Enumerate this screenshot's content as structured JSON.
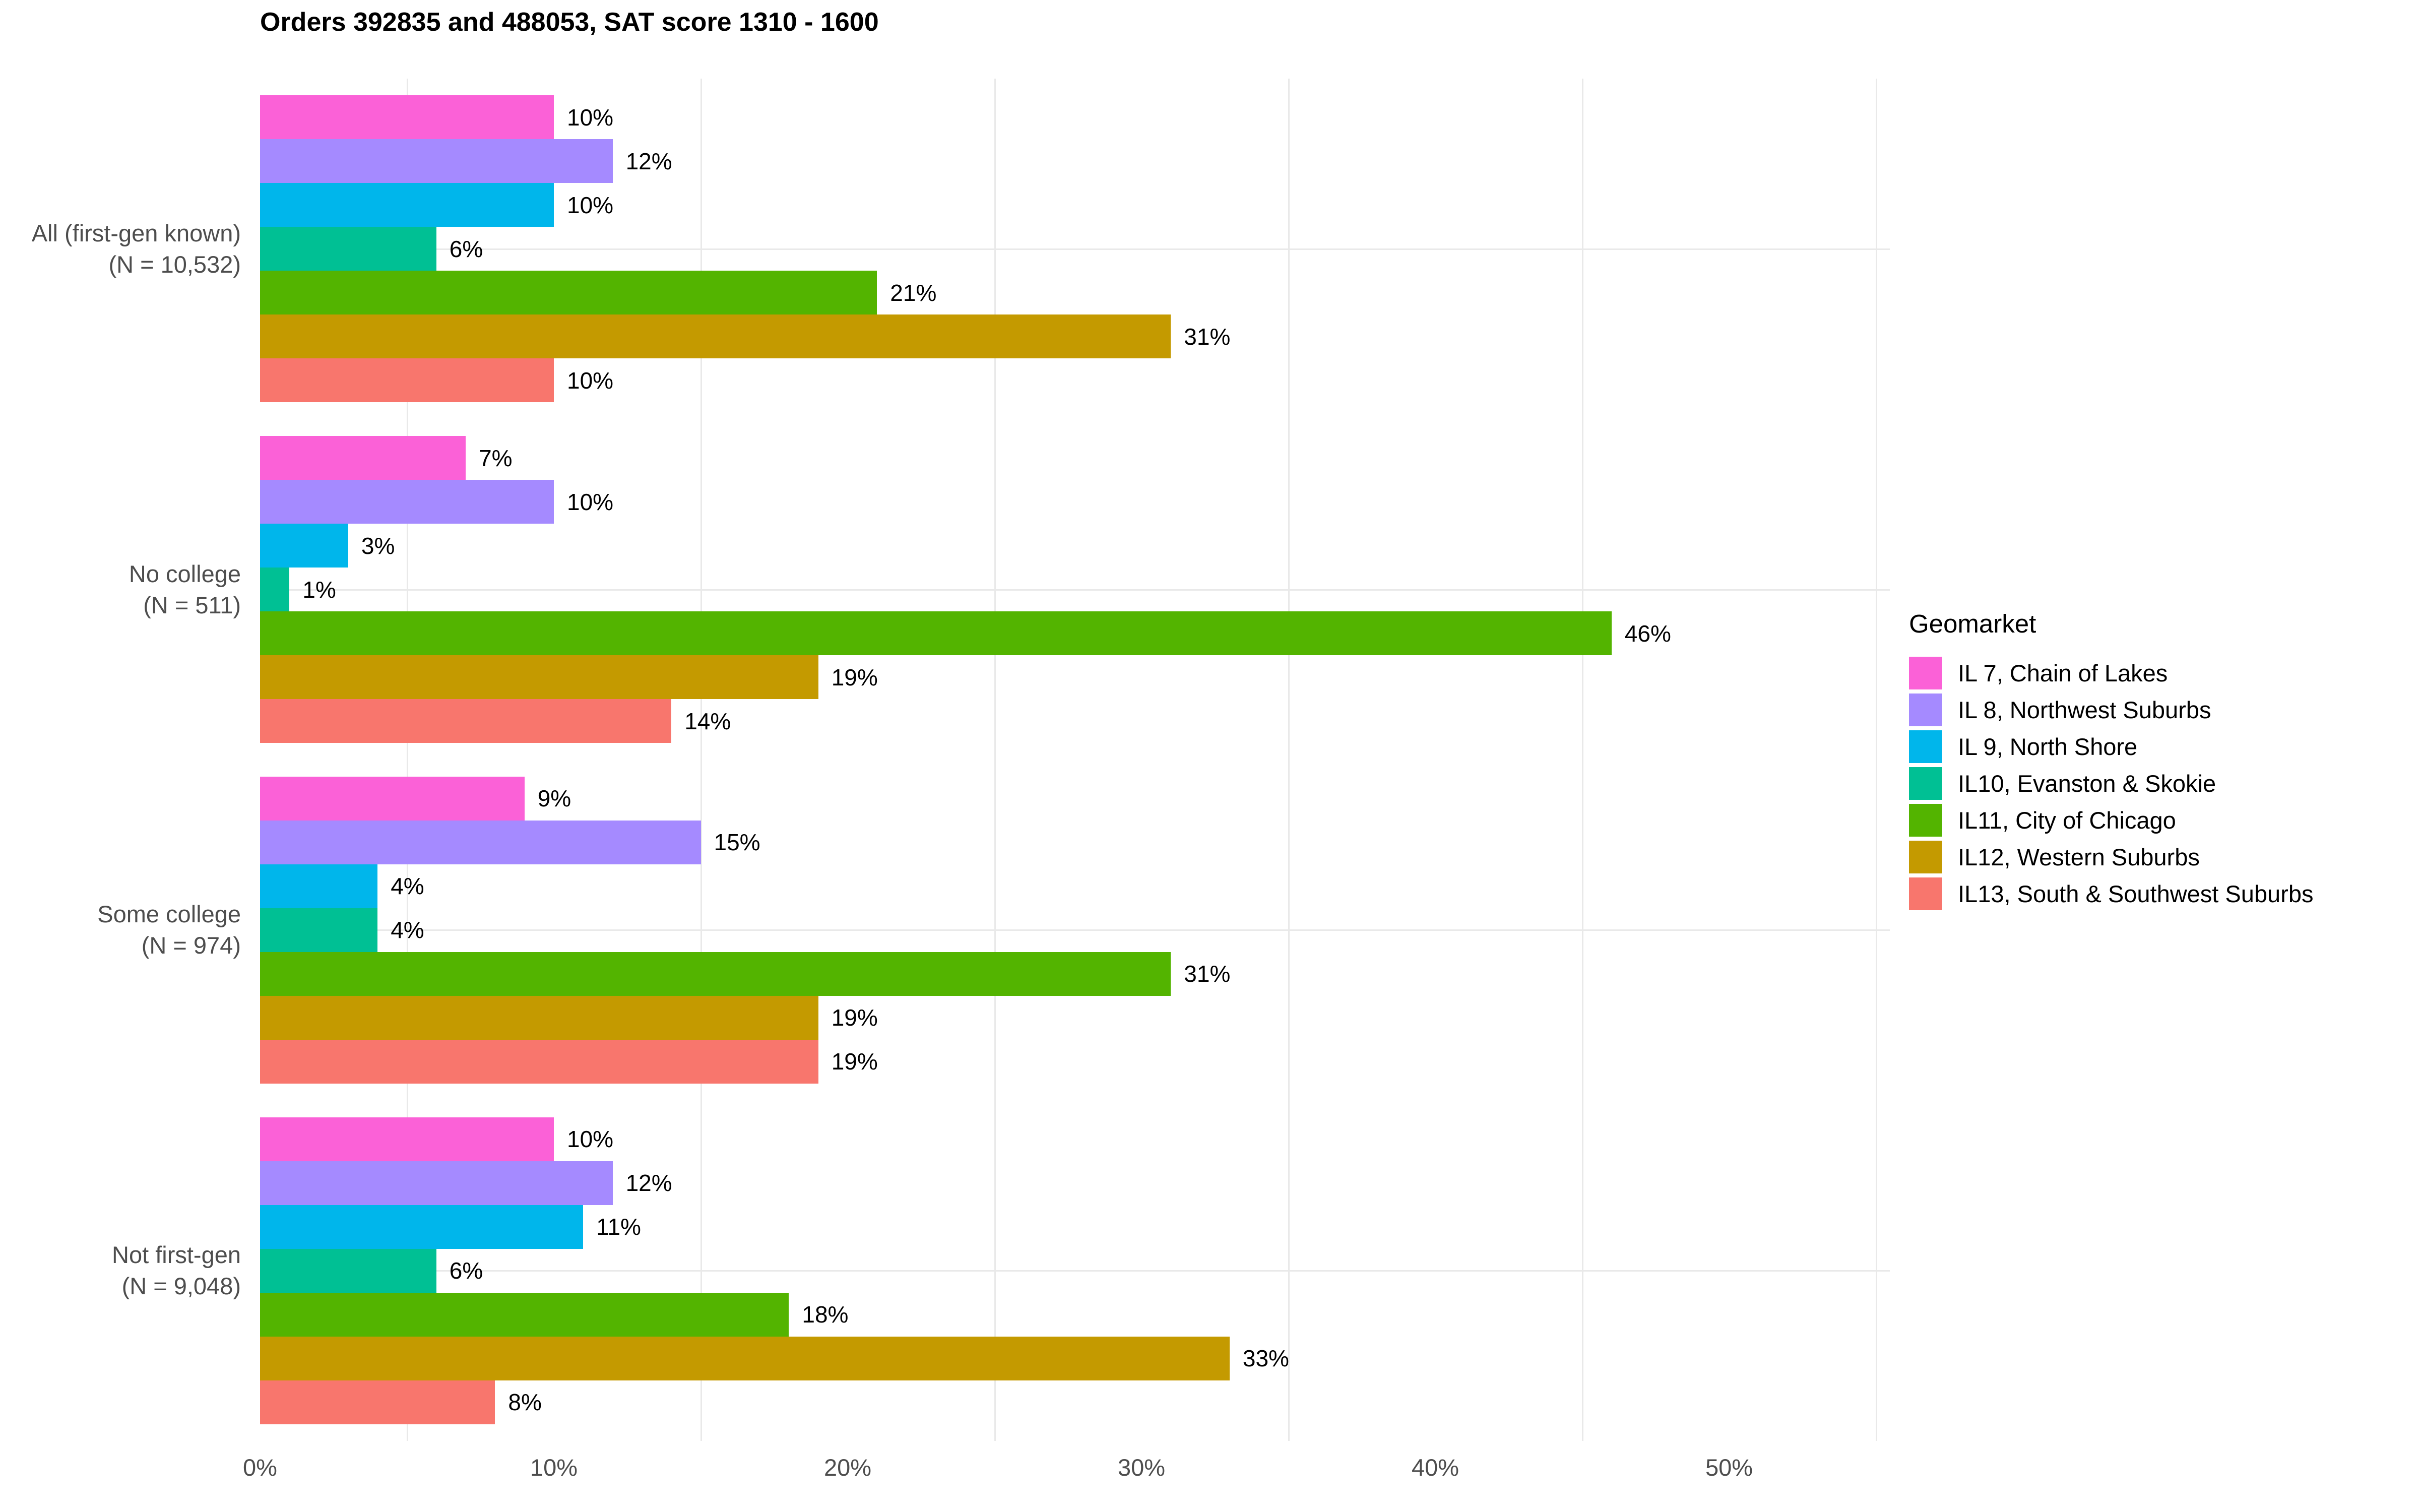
{
  "title": "Orders 392835 and 488053, SAT score 1310 - 1600",
  "chart_data": {
    "type": "bar",
    "orientation": "horizontal",
    "title": "Orders 392835 and 488053, SAT score 1310 - 1600",
    "xlabel": "",
    "ylabel": "",
    "value_suffix": "%",
    "x_axis": {
      "tick_labels": [
        "0%",
        "10%",
        "20%",
        "30%",
        "40%",
        "50%"
      ],
      "tick_values": [
        0,
        10,
        20,
        30,
        40,
        50
      ],
      "minor_gridline_values": [
        5,
        15,
        25,
        35,
        45,
        55
      ],
      "max": 55.5
    },
    "categories": [
      {
        "label_line1": "All (first-gen known)",
        "label_line2": "(N = 10,532)"
      },
      {
        "label_line1": "No college",
        "label_line2": "(N = 511)"
      },
      {
        "label_line1": "Some college",
        "label_line2": "(N = 974)"
      },
      {
        "label_line1": "Not first-gen",
        "label_line2": "(N = 9,048)"
      }
    ],
    "legend": {
      "title": "Geomarket",
      "position": "right"
    },
    "series": [
      {
        "name": "IL 7, Chain of Lakes",
        "color": "#FB61D7",
        "values": [
          10,
          7,
          9,
          10
        ]
      },
      {
        "name": "IL 8, Northwest Suburbs",
        "color": "#A58AFF",
        "values": [
          12,
          10,
          15,
          12
        ]
      },
      {
        "name": "IL 9, North Shore",
        "color": "#00B6EB",
        "values": [
          10,
          3,
          4,
          11
        ]
      },
      {
        "name": "IL10, Evanston & Skokie",
        "color": "#00C094",
        "values": [
          6,
          1,
          4,
          6
        ]
      },
      {
        "name": "IL11, City of Chicago",
        "color": "#53B400",
        "values": [
          21,
          46,
          31,
          18
        ]
      },
      {
        "name": "IL12, Western Suburbs",
        "color": "#C49A00",
        "values": [
          31,
          19,
          19,
          33
        ]
      },
      {
        "name": "IL13, South & Southwest Suburbs",
        "color": "#F8766D",
        "values": [
          10,
          14,
          19,
          8
        ]
      }
    ],
    "grid": {
      "vertical_minor": true,
      "horizontal_major_at_category_centers": true,
      "color": "#E9E9E9"
    },
    "colors": {
      "axis_text": "#4D4D4D",
      "value_label": "#000000",
      "background": "#FFFFFF"
    }
  }
}
